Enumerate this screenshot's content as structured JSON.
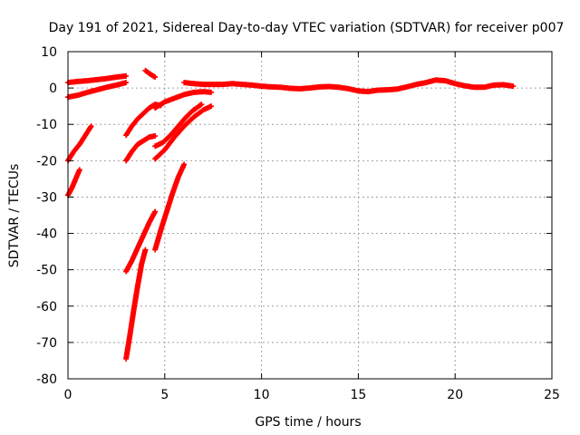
{
  "chart_data": {
    "type": "scatter",
    "title": "Day 191 of 2021, Sidereal Day-to-day VTEC variation (SDTVAR) for receiver p007",
    "xlabel": "GPS time / hours",
    "ylabel": "SDTVAR / TECUs",
    "xlim": [
      0,
      25
    ],
    "ylim": [
      -80,
      10
    ],
    "xticks": [
      0,
      5,
      10,
      15,
      20,
      25
    ],
    "yticks": [
      -80,
      -70,
      -60,
      -50,
      -40,
      -30,
      -20,
      -10,
      0,
      10
    ],
    "grid": true,
    "legend": "none",
    "marker": "plus",
    "color": "#ff0000",
    "series": [
      {
        "points": [
          [
            0.0,
            1.5
          ],
          [
            0.5,
            1.8
          ],
          [
            1.0,
            2.0
          ],
          [
            1.5,
            2.3
          ],
          [
            2.0,
            2.6
          ],
          [
            2.5,
            3.0
          ],
          [
            3.0,
            3.3
          ]
        ]
      },
      {
        "points": [
          [
            0.0,
            -2.5
          ],
          [
            0.5,
            -2.0
          ],
          [
            1.0,
            -1.2
          ],
          [
            1.5,
            -0.5
          ],
          [
            2.0,
            0.2
          ],
          [
            2.5,
            0.8
          ],
          [
            3.0,
            1.5
          ]
        ]
      },
      {
        "points": [
          [
            0.0,
            -20.0
          ],
          [
            0.3,
            -17.5
          ],
          [
            0.6,
            -15.5
          ],
          [
            0.9,
            -13.0
          ],
          [
            1.2,
            -10.5
          ]
        ]
      },
      {
        "points": [
          [
            0.0,
            -29.5
          ],
          [
            0.2,
            -27.5
          ],
          [
            0.4,
            -25.0
          ],
          [
            0.6,
            -22.5
          ]
        ]
      },
      {
        "points": [
          [
            3.0,
            -13.0
          ],
          [
            3.3,
            -10.5
          ],
          [
            3.6,
            -8.5
          ],
          [
            3.9,
            -7.0
          ],
          [
            4.2,
            -5.5
          ],
          [
            4.5,
            -4.5
          ],
          [
            4.8,
            -4.8
          ]
        ]
      },
      {
        "points": [
          [
            3.0,
            -20.0
          ],
          [
            3.3,
            -17.5
          ],
          [
            3.6,
            -15.5
          ],
          [
            3.9,
            -14.5
          ],
          [
            4.2,
            -13.5
          ],
          [
            4.5,
            -13.2
          ]
        ]
      },
      {
        "points": [
          [
            3.0,
            -50.5
          ],
          [
            3.3,
            -47.5
          ],
          [
            3.6,
            -44.0
          ],
          [
            3.9,
            -40.5
          ],
          [
            4.2,
            -37.0
          ],
          [
            4.5,
            -34.0
          ]
        ]
      },
      {
        "points": [
          [
            3.0,
            -74.5
          ],
          [
            3.2,
            -68.0
          ],
          [
            3.4,
            -61.0
          ],
          [
            3.6,
            -54.5
          ],
          [
            3.8,
            -48.5
          ],
          [
            4.0,
            -44.5
          ]
        ]
      },
      {
        "points": [
          [
            4.0,
            4.8
          ],
          [
            4.2,
            4.0
          ],
          [
            4.5,
            3.0
          ]
        ]
      },
      {
        "points": [
          [
            4.5,
            -44.5
          ],
          [
            4.8,
            -39.0
          ],
          [
            5.1,
            -34.0
          ],
          [
            5.4,
            -29.0
          ],
          [
            5.7,
            -24.5
          ],
          [
            6.0,
            -21.0
          ]
        ]
      },
      {
        "points": [
          [
            4.5,
            -16.0
          ],
          [
            4.9,
            -15.0
          ],
          [
            5.3,
            -13.0
          ],
          [
            5.7,
            -10.5
          ],
          [
            6.1,
            -8.0
          ],
          [
            6.5,
            -6.0
          ],
          [
            6.9,
            -4.5
          ]
        ]
      },
      {
        "points": [
          [
            4.5,
            -19.5
          ],
          [
            5.0,
            -17.0
          ],
          [
            5.5,
            -13.5
          ],
          [
            6.0,
            -10.5
          ],
          [
            6.5,
            -8.0
          ],
          [
            7.0,
            -6.0
          ],
          [
            7.4,
            -5.0
          ]
        ]
      },
      {
        "points": [
          [
            4.5,
            -5.5
          ],
          [
            5.0,
            -3.8
          ],
          [
            5.5,
            -2.8
          ],
          [
            6.0,
            -1.8
          ],
          [
            6.5,
            -1.2
          ],
          [
            7.0,
            -1.0
          ],
          [
            7.4,
            -1.2
          ]
        ]
      },
      {
        "points": [
          [
            6.0,
            1.5
          ],
          [
            6.5,
            1.2
          ],
          [
            7.0,
            1.0
          ],
          [
            7.5,
            1.0
          ],
          [
            8.0,
            1.0
          ],
          [
            8.5,
            1.2
          ],
          [
            9.0,
            1.0
          ],
          [
            9.5,
            0.8
          ],
          [
            10.0,
            0.5
          ],
          [
            10.5,
            0.3
          ],
          [
            11.0,
            0.2
          ],
          [
            11.5,
            -0.1
          ],
          [
            12.0,
            -0.2
          ],
          [
            12.5,
            0.0
          ],
          [
            13.0,
            0.3
          ],
          [
            13.5,
            0.4
          ],
          [
            14.0,
            0.2
          ],
          [
            14.5,
            -0.2
          ],
          [
            15.0,
            -0.8
          ],
          [
            15.5,
            -1.0
          ],
          [
            16.0,
            -0.6
          ],
          [
            16.5,
            -0.5
          ],
          [
            17.0,
            -0.3
          ],
          [
            17.5,
            0.3
          ],
          [
            18.0,
            1.0
          ],
          [
            18.5,
            1.5
          ],
          [
            19.0,
            2.2
          ],
          [
            19.5,
            2.0
          ],
          [
            20.0,
            1.2
          ],
          [
            20.5,
            0.6
          ],
          [
            21.0,
            0.2
          ],
          [
            21.5,
            0.2
          ],
          [
            22.0,
            0.8
          ],
          [
            22.5,
            0.9
          ],
          [
            23.0,
            0.5
          ]
        ]
      }
    ]
  }
}
